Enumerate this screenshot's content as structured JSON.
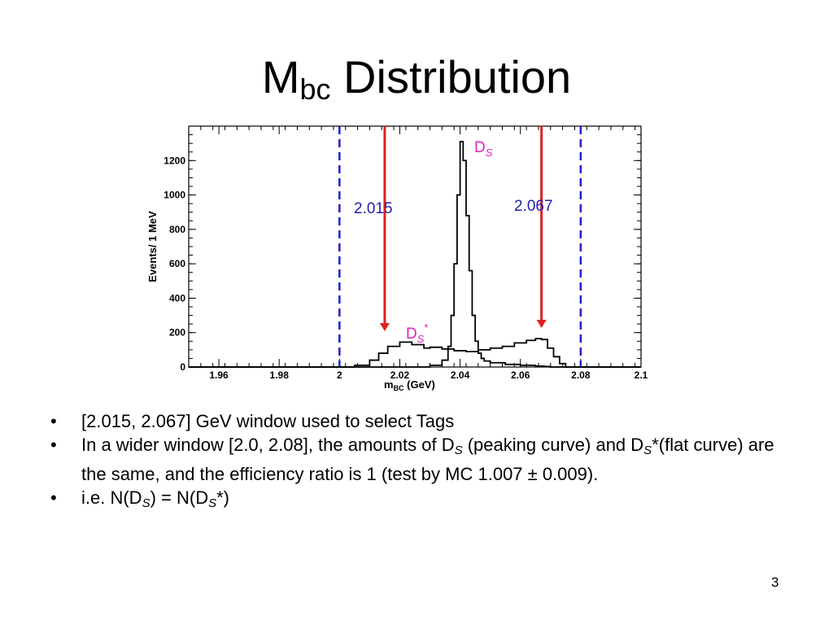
{
  "slide": {
    "title_main": "M",
    "title_sub": "bc",
    "title_rest": " Distribution",
    "page_number": "3"
  },
  "bullets": {
    "b1": "[2.015, 2.067] GeV window used to select Tags",
    "b2_a": "In a wider window [2.0, 2.08], the amounts of D",
    "b2_s1": "S",
    "b2_b": " (peaking curve) and D",
    "b2_s2": "S",
    "b2_c": "*(flat curve) are the same, and the efficiency ratio is 1 (test by MC 1.007 ± 0.009).",
    "b3_a": "i.e. N(D",
    "b3_s1": "S",
    "b3_b": ") = N(D",
    "b3_s2": "S",
    "b3_c": "*)"
  },
  "chart_data": {
    "type": "line",
    "xlabel_main": "m",
    "xlabel_sub": "BC",
    "xlabel_unit": " (GeV)",
    "ylabel": "Events/ 1 MeV",
    "xlim": [
      1.95,
      2.1
    ],
    "ylim": [
      0,
      1400
    ],
    "x_ticks": [
      1.96,
      1.98,
      2.0,
      2.02,
      2.04,
      2.06,
      2.08,
      2.1
    ],
    "x_tick_labels": [
      "1.96",
      "1.98",
      "2",
      "2.02",
      "2.04",
      "2.06",
      "2.08",
      "2.1"
    ],
    "y_ticks": [
      0,
      200,
      400,
      600,
      800,
      1000,
      1200
    ],
    "y_tick_labels": [
      "0",
      "200",
      "400",
      "600",
      "800",
      "1000",
      "1200"
    ],
    "series": [
      {
        "name": "D_S",
        "x": [
          1.95,
          2.015,
          2.025,
          2.03,
          2.034,
          2.036,
          2.037,
          2.038,
          2.039,
          2.04,
          2.041,
          2.042,
          2.043,
          2.044,
          2.045,
          2.046,
          2.047,
          2.048,
          2.05,
          2.055,
          2.06,
          2.065,
          2.068,
          2.07,
          2.1
        ],
        "y": [
          0,
          0,
          0,
          10,
          40,
          120,
          300,
          600,
          1000,
          1310,
          1200,
          880,
          560,
          300,
          150,
          80,
          50,
          35,
          25,
          15,
          10,
          5,
          3,
          0,
          0
        ],
        "color": "#000000"
      },
      {
        "name": "D_S*",
        "x": [
          1.95,
          2.0,
          2.005,
          2.01,
          2.013,
          2.016,
          2.02,
          2.024,
          2.028,
          2.03,
          2.034,
          2.038,
          2.042,
          2.046,
          2.05,
          2.054,
          2.058,
          2.062,
          2.065,
          2.067,
          2.069,
          2.071,
          2.073,
          2.075,
          2.1
        ],
        "y": [
          0,
          0,
          10,
          40,
          80,
          120,
          145,
          130,
          110,
          115,
          105,
          95,
          90,
          100,
          110,
          120,
          140,
          155,
          165,
          160,
          110,
          60,
          20,
          0,
          0
        ],
        "color": "#000000"
      }
    ],
    "selection_window": {
      "low": 2.015,
      "high": 2.067,
      "low_label": "2.015",
      "high_label": "2.067",
      "arrow_color": "#e02020",
      "label_color": "#1f1fb0"
    },
    "wide_window": {
      "low": 2.0,
      "high": 2.08,
      "color": "#1f1fcf"
    },
    "annotations": [
      {
        "main": "D",
        "sub": "S",
        "sup": "",
        "color": "#e020c0"
      },
      {
        "main": "D",
        "sub": "S",
        "sup": "*",
        "color": "#e020c0"
      }
    ]
  }
}
